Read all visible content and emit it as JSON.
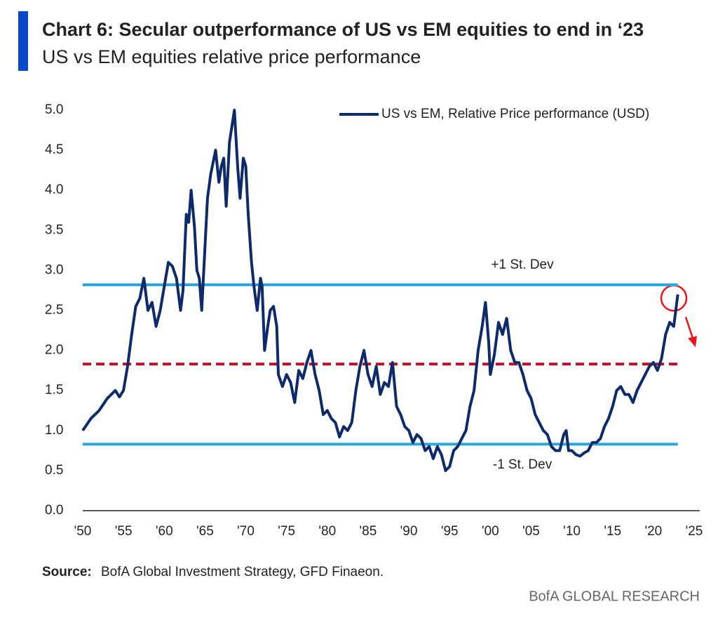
{
  "chart_data": {
    "type": "line",
    "title": "Chart 6: Secular outperformance of US vs EM equities to end in ‘23",
    "subtitle": "US vs EM equities relative price performance",
    "source_label": "Source:",
    "source": "BofA Global Investment Strategy, GFD Finaeon.",
    "footer": "BofA GLOBAL RESEARCH",
    "legend": "top-right",
    "xlim": [
      1950,
      2025
    ],
    "ylim": [
      0,
      5
    ],
    "xticks": [
      {
        "value": 1950,
        "label": "'50"
      },
      {
        "value": 1955,
        "label": "'55"
      },
      {
        "value": 1960,
        "label": "'60"
      },
      {
        "value": 1965,
        "label": "'65"
      },
      {
        "value": 1970,
        "label": "'70"
      },
      {
        "value": 1975,
        "label": "'75"
      },
      {
        "value": 1980,
        "label": "'80"
      },
      {
        "value": 1985,
        "label": "'85"
      },
      {
        "value": 1990,
        "label": "'90"
      },
      {
        "value": 1995,
        "label": "'95"
      },
      {
        "value": 2000,
        "label": "'00"
      },
      {
        "value": 2005,
        "label": "'05"
      },
      {
        "value": 2010,
        "label": "'10"
      },
      {
        "value": 2015,
        "label": "'15"
      },
      {
        "value": 2020,
        "label": "'20"
      },
      {
        "value": 2025,
        "label": "'25"
      }
    ],
    "yticks": [
      {
        "value": 0,
        "label": "0.0"
      },
      0.5,
      {
        "value": 1,
        "label": "1.0"
      },
      1.5,
      {
        "value": 2,
        "label": "2.0"
      },
      2.5,
      {
        "value": 3,
        "label": "3.0"
      },
      3.5,
      {
        "value": 4,
        "label": "4.0"
      },
      4.5,
      {
        "value": 5,
        "label": "5.0"
      }
    ],
    "reference_lines": [
      {
        "value": 2.82,
        "color": "#29a8e0",
        "label": "+1 St. Dev"
      },
      {
        "value": 1.83,
        "color": "#c8102e",
        "style": "dashed"
      },
      {
        "value": 0.83,
        "color": "#29a8e0",
        "label": "-1 St. Dev"
      }
    ],
    "x": [
      1950,
      1951,
      1952,
      1953,
      1954,
      1954.5,
      1955,
      1955.5,
      1956,
      1956.5,
      1957,
      1957.5,
      1958,
      1958.5,
      1959,
      1959.5,
      1960,
      1960.5,
      1961,
      1961.5,
      1962,
      1962.3,
      1962.7,
      1963,
      1963.3,
      1963.7,
      1964,
      1964.3,
      1964.6,
      1965,
      1965.3,
      1965.7,
      1966,
      1966.3,
      1966.7,
      1967,
      1967.3,
      1967.6,
      1968,
      1968.3,
      1968.6,
      1969,
      1969.3,
      1969.7,
      1970,
      1970.3,
      1970.7,
      1971,
      1971.4,
      1971.8,
      1972,
      1972.3,
      1972.7,
      1973,
      1973.4,
      1973.8,
      1974,
      1974.5,
      1975,
      1975.5,
      1976,
      1976.5,
      1977,
      1977.5,
      1978,
      1978.5,
      1979,
      1979.5,
      1980,
      1980.5,
      1981,
      1981.5,
      1982,
      1982.5,
      1983,
      1983.5,
      1984,
      1984.5,
      1985,
      1985.5,
      1986,
      1986.5,
      1987,
      1987.5,
      1988,
      1988.5,
      1989,
      1989.5,
      1990,
      1990.5,
      1991,
      1991.5,
      1992,
      1992.5,
      1993,
      1993.5,
      1994,
      1994.5,
      1995,
      1995.5,
      1996,
      1996.5,
      1997,
      1997.5,
      1998,
      1998.5,
      1999,
      1999.4,
      1999.8,
      2000,
      2000.5,
      2001,
      2001.5,
      2002,
      2002.5,
      2003,
      2003.5,
      2004,
      2004.5,
      2005,
      2005.5,
      2006,
      2006.5,
      2007,
      2007.5,
      2008,
      2008.5,
      2009,
      2009.3,
      2009.6,
      2010,
      2010.5,
      2011,
      2011.5,
      2012,
      2012.5,
      2013,
      2013.5,
      2014,
      2014.5,
      2015,
      2015.5,
      2016,
      2016.5,
      2017,
      2017.5,
      2018,
      2018.5,
      2019,
      2019.5,
      2020,
      2020.5,
      2021,
      2021.5,
      2022,
      2022.5,
      2023
    ],
    "series": [
      {
        "name": "US vs EM, Relative Price performance (USD)",
        "color": "#0d2a6b",
        "values": [
          1.0,
          1.15,
          1.25,
          1.4,
          1.5,
          1.42,
          1.5,
          1.8,
          2.2,
          2.55,
          2.65,
          2.9,
          2.5,
          2.6,
          2.3,
          2.5,
          2.8,
          3.1,
          3.05,
          2.9,
          2.5,
          2.75,
          3.7,
          3.6,
          4.0,
          3.55,
          3.0,
          2.9,
          2.5,
          3.3,
          3.9,
          4.2,
          4.35,
          4.5,
          4.1,
          4.3,
          4.4,
          3.8,
          4.6,
          4.8,
          5.0,
          4.3,
          3.9,
          4.4,
          4.3,
          3.7,
          3.1,
          2.8,
          2.5,
          2.9,
          2.8,
          2.0,
          2.3,
          2.5,
          2.55,
          2.3,
          1.7,
          1.55,
          1.7,
          1.6,
          1.35,
          1.75,
          1.65,
          1.85,
          2.0,
          1.7,
          1.5,
          1.2,
          1.25,
          1.15,
          1.1,
          0.92,
          1.05,
          1.0,
          1.1,
          1.5,
          1.8,
          2.0,
          1.7,
          1.55,
          1.8,
          1.45,
          1.6,
          1.55,
          1.85,
          1.3,
          1.2,
          1.05,
          1.0,
          0.85,
          0.95,
          0.9,
          0.75,
          0.8,
          0.65,
          0.8,
          0.7,
          0.5,
          0.55,
          0.75,
          0.8,
          0.9,
          1.0,
          1.3,
          1.5,
          2.0,
          2.3,
          2.6,
          2.1,
          1.7,
          1.95,
          2.35,
          2.2,
          2.4,
          2.0,
          1.85,
          1.85,
          1.7,
          1.5,
          1.4,
          1.2,
          1.1,
          1.0,
          0.95,
          0.8,
          0.75,
          0.75,
          0.95,
          1.0,
          0.75,
          0.75,
          0.7,
          0.68,
          0.72,
          0.75,
          0.85,
          0.85,
          0.9,
          1.05,
          1.15,
          1.3,
          1.5,
          1.55,
          1.45,
          1.45,
          1.35,
          1.5,
          1.6,
          1.7,
          1.8,
          1.85,
          1.75,
          1.9,
          2.2,
          2.35,
          2.3,
          2.7
        ]
      }
    ]
  }
}
